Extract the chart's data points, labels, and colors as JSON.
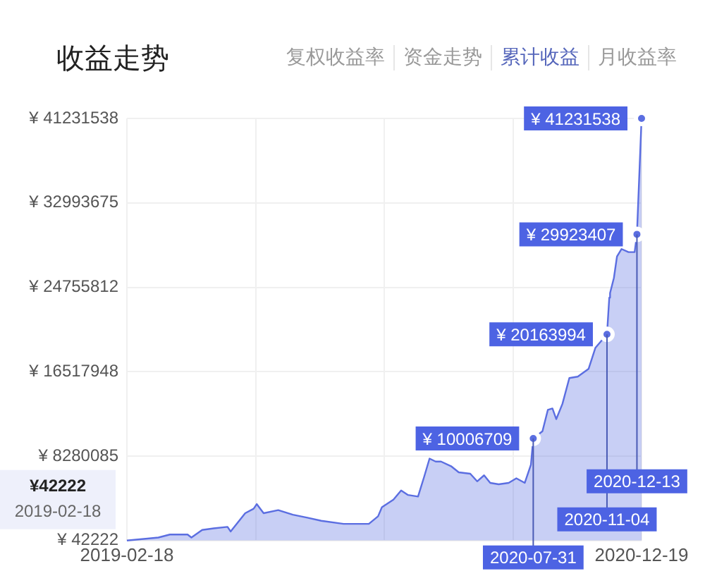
{
  "chart_data": {
    "type": "area",
    "title": "收益走势",
    "annotations": [
      "复权收益率",
      "资金走势",
      "累计收益",
      "月收益率",
      "¥42222",
      "2019-02-18"
    ],
    "x": [
      "2019-02-18",
      "2019-03-31",
      "2019-04-15",
      "2019-05-08",
      "2019-05-13",
      "2019-05-27",
      "2019-06-11",
      "2019-06-29",
      "2019-07-03",
      "2019-07-22",
      "2019-08-02",
      "2019-08-06",
      "2019-08-15",
      "2019-09-03",
      "2019-09-22",
      "2019-10-11",
      "2019-10-29",
      "2019-11-27",
      "2019-12-30",
      "2020-01-11",
      "2020-01-16",
      "2020-01-31",
      "2020-02-10",
      "2020-02-19",
      "2020-03-03",
      "2020-03-11",
      "2020-03-18",
      "2020-03-26",
      "2020-04-02",
      "2020-04-15",
      "2020-04-25",
      "2020-05-10",
      "2020-05-19",
      "2020-05-28",
      "2020-06-05",
      "2020-06-16",
      "2020-06-29",
      "2020-07-09",
      "2020-07-20",
      "2020-07-28",
      "2020-07-31",
      "2020-08-12",
      "2020-08-19",
      "2020-08-25",
      "2020-08-30",
      "2020-09-07",
      "2020-09-16",
      "2020-09-27",
      "2020-10-11",
      "2020-10-20",
      "2020-11-04",
      "2020-11-07",
      "2020-11-08",
      "2020-11-13",
      "2020-11-17",
      "2020-11-23",
      "2020-12-02",
      "2020-12-10",
      "2020-12-13",
      "2020-12-19"
    ],
    "series": [
      {
        "color": "#5b6ee1",
        "values": [
          42222,
          340000,
          630000,
          630000,
          340000,
          1080000,
          1230000,
          1380000,
          930000,
          2710000,
          3150000,
          3600000,
          2710000,
          3010000,
          2560000,
          2270000,
          1970000,
          1670000,
          1670000,
          2410000,
          3300000,
          4040000,
          4930000,
          4490000,
          4340000,
          6270000,
          8040000,
          7750000,
          7750000,
          7300000,
          6700000,
          6560000,
          5820000,
          6410000,
          5670000,
          5530000,
          5670000,
          6120000,
          5670000,
          7450000,
          10006709,
          10710000,
          12790000,
          12930000,
          11890000,
          13380000,
          15900000,
          16040000,
          16790000,
          18860000,
          20163994,
          23750000,
          24190000,
          25670000,
          27750000,
          28490000,
          28190000,
          28190000,
          29923407,
          41231538
        ],
        "value_labels": [
          null,
          null,
          null,
          null,
          null,
          null,
          null,
          null,
          null,
          null,
          null,
          null,
          null,
          null,
          null,
          null,
          null,
          null,
          null,
          null,
          null,
          null,
          null,
          null,
          null,
          null,
          null,
          null,
          null,
          null,
          null,
          null,
          null,
          null,
          null,
          null,
          null,
          null,
          null,
          null,
          "¥ 10006709",
          null,
          null,
          null,
          null,
          null,
          null,
          null,
          null,
          null,
          "¥ 20163994",
          null,
          null,
          null,
          null,
          null,
          null,
          null,
          "¥ 29923407",
          "¥ 41231538"
        ]
      }
    ],
    "xlim": [
      "2019-02-18",
      "2020-12-19"
    ],
    "xticks": [
      {
        "value": "2019-02-18",
        "label": "2019-02-18"
      },
      {
        "value": "2019-08-05",
        "label": null
      },
      {
        "value": "2020-01-19",
        "label": null
      },
      {
        "value": "2020-07-05",
        "label": null
      },
      {
        "value": "2020-12-19",
        "label": "2020-12-19"
      }
    ],
    "ylim": [
      42222,
      41231538
    ],
    "yticks": [
      {
        "value": 42222,
        "label": "¥ 42222"
      },
      {
        "value": 8280085,
        "label": "¥ 8280085"
      },
      {
        "value": 16517948,
        "label": "¥ 16517948"
      },
      {
        "value": 24755812,
        "label": "¥ 24755812"
      },
      {
        "value": 32993675,
        "label": "¥ 32993675"
      },
      {
        "value": 41231538,
        "label": "¥ 41231538"
      }
    ],
    "ref_lines": [
      {
        "axis": "x",
        "value": "2020-07-31",
        "label": "2020-07-31"
      },
      {
        "axis": "x",
        "value": "2020-11-04",
        "label": "2020-11-04"
      },
      {
        "axis": "x",
        "value": "2020-12-13",
        "label": "2020-12-13"
      }
    ],
    "grid": true,
    "legend": false,
    "line_style": "solid"
  }
}
